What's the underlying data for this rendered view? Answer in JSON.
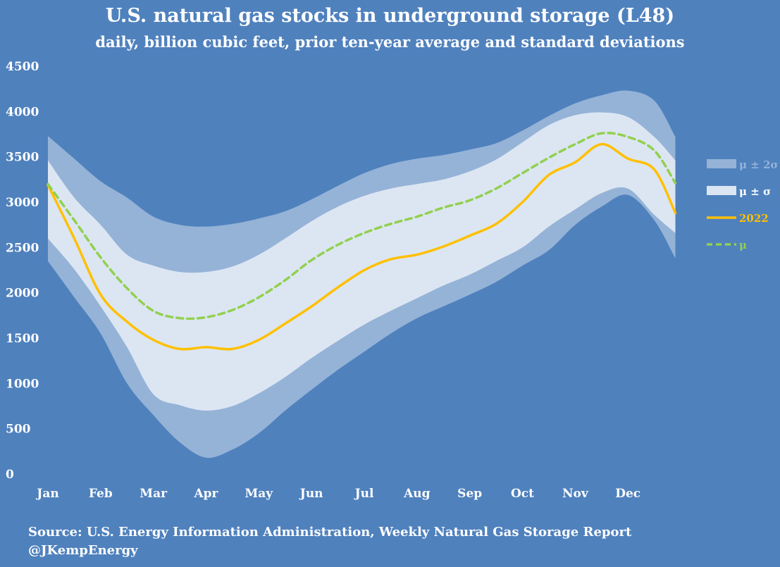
{
  "chart_data": {
    "type": "area",
    "title": "U.S. natural gas stocks in underground storage (L48)",
    "subtitle": "daily, billion cubic feet, prior ten-year average and standard deviations",
    "xlabel": "",
    "ylabel": "",
    "ylim": [
      0,
      4500
    ],
    "yticks": [
      0,
      500,
      1000,
      1500,
      2000,
      2500,
      3000,
      3500,
      4000,
      4500
    ],
    "xlim": [
      0,
      12.0
    ],
    "months": [
      "Jan",
      "Feb",
      "Mar",
      "Apr",
      "May",
      "Jun",
      "Jul",
      "Aug",
      "Sep",
      "Oct",
      "Nov",
      "Dec"
    ],
    "grid": false,
    "legend_position": "right",
    "x": [
      0.0,
      0.5,
      1.0,
      1.5,
      2.0,
      2.5,
      3.0,
      3.5,
      4.0,
      4.5,
      5.0,
      5.5,
      6.0,
      6.5,
      7.0,
      7.5,
      8.0,
      8.5,
      9.0,
      9.5,
      10.0,
      10.5,
      11.0,
      11.5,
      11.9
    ],
    "series": [
      {
        "name": "μ ± 2σ",
        "upper": [
          3730,
          3480,
          3230,
          3050,
          2840,
          2750,
          2730,
          2760,
          2820,
          2900,
          3030,
          3180,
          3320,
          3420,
          3480,
          3520,
          3580,
          3650,
          3790,
          3950,
          4090,
          4180,
          4230,
          4120,
          3720
        ],
        "lower": [
          2350,
          1950,
          1550,
          1000,
          650,
          350,
          180,
          270,
          450,
          700,
          930,
          1150,
          1350,
          1550,
          1720,
          1850,
          1980,
          2120,
          2300,
          2470,
          2750,
          2950,
          3080,
          2800,
          2380
        ],
        "color": "#95b3d7"
      },
      {
        "name": "μ ± σ",
        "upper": [
          3460,
          3050,
          2750,
          2420,
          2300,
          2230,
          2230,
          2290,
          2420,
          2600,
          2790,
          2950,
          3070,
          3150,
          3200,
          3250,
          3340,
          3470,
          3660,
          3850,
          3960,
          3990,
          3940,
          3720,
          3460
        ],
        "lower": [
          2600,
          2260,
          1850,
          1400,
          880,
          760,
          700,
          750,
          890,
          1070,
          1280,
          1470,
          1650,
          1800,
          1940,
          2080,
          2200,
          2350,
          2500,
          2730,
          2920,
          3100,
          3150,
          2860,
          2660
        ],
        "color": "#dce6f2"
      },
      {
        "name": "2022",
        "values": [
          3190,
          2600,
          1980,
          1680,
          1480,
          1380,
          1400,
          1380,
          1480,
          1660,
          1850,
          2060,
          2250,
          2370,
          2420,
          2510,
          2630,
          2760,
          3000,
          3300,
          3440,
          3640,
          3480,
          3360,
          2880
        ],
        "color": "#ffc000"
      },
      {
        "name": "μ",
        "values": [
          3200,
          2800,
          2390,
          2050,
          1800,
          1720,
          1730,
          1810,
          1950,
          2140,
          2360,
          2530,
          2660,
          2760,
          2840,
          2940,
          3020,
          3150,
          3320,
          3490,
          3640,
          3760,
          3720,
          3570,
          3210
        ],
        "color": "#92d050"
      }
    ]
  },
  "legend": [
    {
      "label": "μ ± 2σ",
      "kind": "band",
      "color": "#95b3d7",
      "text_color": "#95b3d7"
    },
    {
      "label": "μ ± σ",
      "kind": "band",
      "color": "#dce6f2",
      "text_color": "#ffffff"
    },
    {
      "label": "2022",
      "kind": "line",
      "color": "#ffc000",
      "text_color": "#ffc000"
    },
    {
      "label": "μ",
      "kind": "dash",
      "color": "#92d050",
      "text_color": "#92d050"
    }
  ],
  "source_lines": [
    "Source: U.S. Energy Information Administration, Weekly Natural Gas Storage Report",
    "@JKempEnergy"
  ]
}
